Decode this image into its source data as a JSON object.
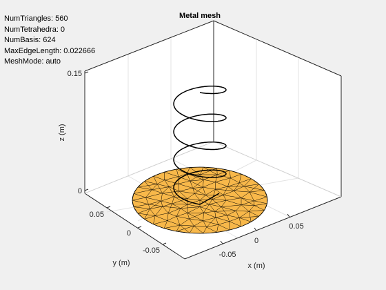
{
  "chart_data": {
    "type": "mesh3d",
    "title": "Metal mesh",
    "info": [
      "NumTriangles: 560",
      "NumTetrahedra: 0",
      "NumBasis: 624",
      "MaxEdgeLength: 0.022666",
      "MeshMode: auto"
    ],
    "xlabel": "x (m)",
    "ylabel": "y (m)",
    "zlabel": "z (m)",
    "x_ticks": [
      "-0.05",
      "0",
      "0.05"
    ],
    "y_ticks": [
      "-0.05",
      "0",
      "0.05"
    ],
    "z_ticks": [
      "0",
      "0.15"
    ],
    "ground_plane": {
      "shape": "disc",
      "radius": 0.075,
      "face_color": "#f8b84a",
      "edge_color": "#000000"
    },
    "helix": {
      "turns": 4,
      "radius": 0.022,
      "height": 0.14,
      "color": "#000000"
    },
    "box_color": "#262626",
    "grid": true
  }
}
